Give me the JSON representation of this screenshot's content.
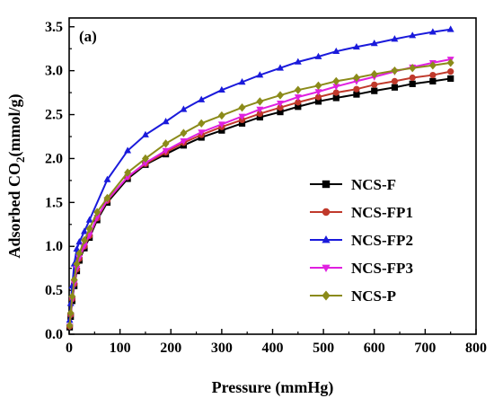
{
  "chart_data": {
    "type": "line",
    "panel_label": "(a)",
    "xlabel": "Pressure (mmHg)",
    "ylabel_main": "Adsorbed CO",
    "ylabel_sub": "2",
    "ylabel_unit": "(mmol/g)",
    "xlim": [
      0,
      800
    ],
    "ylim": [
      0.0,
      3.6
    ],
    "x_ticks": [
      0,
      100,
      200,
      300,
      400,
      500,
      600,
      700,
      800
    ],
    "x_tick_labels": [
      "0",
      "100",
      "200",
      "300",
      "400",
      "500",
      "600",
      "700",
      "800"
    ],
    "y_ticks": [
      0.0,
      0.5,
      1.0,
      1.5,
      2.0,
      2.5,
      3.0,
      3.5
    ],
    "y_tick_labels": [
      "0.0",
      "0.5",
      "1.0",
      "1.5",
      "2.0",
      "2.5",
      "3.0",
      "3.5"
    ],
    "grid": false,
    "legend_position": "right-middle",
    "series": [
      {
        "name": "NCS-F",
        "color": "#000000",
        "marker": "square",
        "x": [
          1,
          3,
          6,
          10,
          15,
          20,
          30,
          40,
          55,
          75,
          115,
          150,
          190,
          225,
          260,
          300,
          340,
          375,
          415,
          450,
          490,
          525,
          565,
          600,
          640,
          675,
          715,
          750
        ],
        "y": [
          0.08,
          0.2,
          0.38,
          0.55,
          0.72,
          0.84,
          0.98,
          1.1,
          1.3,
          1.5,
          1.77,
          1.93,
          2.05,
          2.15,
          2.24,
          2.32,
          2.4,
          2.47,
          2.53,
          2.59,
          2.65,
          2.69,
          2.73,
          2.77,
          2.81,
          2.85,
          2.88,
          2.91
        ]
      },
      {
        "name": "NCS-FP1",
        "color": "#c0392b",
        "marker": "circle",
        "x": [
          1,
          3,
          6,
          10,
          15,
          20,
          30,
          40,
          55,
          75,
          115,
          150,
          190,
          225,
          260,
          300,
          340,
          375,
          415,
          450,
          490,
          525,
          565,
          600,
          640,
          675,
          715,
          750
        ],
        "y": [
          0.09,
          0.22,
          0.4,
          0.57,
          0.74,
          0.86,
          1.0,
          1.12,
          1.32,
          1.52,
          1.79,
          1.94,
          2.07,
          2.18,
          2.27,
          2.36,
          2.44,
          2.51,
          2.58,
          2.64,
          2.7,
          2.75,
          2.79,
          2.84,
          2.88,
          2.92,
          2.95,
          2.99
        ]
      },
      {
        "name": "NCS-FP2",
        "color": "#1a1adb",
        "marker": "triangle-up",
        "x": [
          1,
          3,
          6,
          10,
          15,
          20,
          30,
          40,
          75,
          115,
          150,
          190,
          225,
          260,
          300,
          340,
          375,
          415,
          450,
          490,
          525,
          565,
          600,
          640,
          675,
          715,
          750
        ],
        "y": [
          0.16,
          0.35,
          0.55,
          0.8,
          0.97,
          1.05,
          1.17,
          1.3,
          1.76,
          2.09,
          2.27,
          2.42,
          2.56,
          2.67,
          2.78,
          2.87,
          2.95,
          3.03,
          3.1,
          3.16,
          3.22,
          3.27,
          3.31,
          3.36,
          3.4,
          3.44,
          3.47
        ]
      },
      {
        "name": "NCS-FP3",
        "color": "#e020e0",
        "marker": "triangle-down",
        "x": [
          1,
          3,
          6,
          10,
          15,
          20,
          30,
          40,
          55,
          75,
          115,
          150,
          190,
          225,
          260,
          300,
          340,
          375,
          415,
          450,
          490,
          525,
          565,
          600,
          640,
          675,
          715,
          750
        ],
        "y": [
          0.09,
          0.22,
          0.4,
          0.58,
          0.75,
          0.87,
          1.01,
          1.13,
          1.33,
          1.53,
          1.79,
          1.95,
          2.09,
          2.2,
          2.3,
          2.39,
          2.48,
          2.56,
          2.63,
          2.7,
          2.76,
          2.82,
          2.88,
          2.93,
          2.99,
          3.04,
          3.09,
          3.13
        ]
      },
      {
        "name": "NCS-P",
        "color": "#8b8b1a",
        "marker": "diamond",
        "x": [
          1,
          3,
          6,
          10,
          15,
          20,
          30,
          40,
          55,
          75,
          115,
          150,
          190,
          225,
          260,
          300,
          340,
          375,
          415,
          450,
          490,
          525,
          565,
          600,
          640,
          675,
          715,
          750
        ],
        "y": [
          0.1,
          0.24,
          0.43,
          0.62,
          0.8,
          0.92,
          1.07,
          1.2,
          1.39,
          1.55,
          1.84,
          2.0,
          2.17,
          2.29,
          2.4,
          2.49,
          2.58,
          2.65,
          2.72,
          2.78,
          2.83,
          2.88,
          2.92,
          2.96,
          3.0,
          3.03,
          3.06,
          3.09
        ]
      }
    ]
  }
}
